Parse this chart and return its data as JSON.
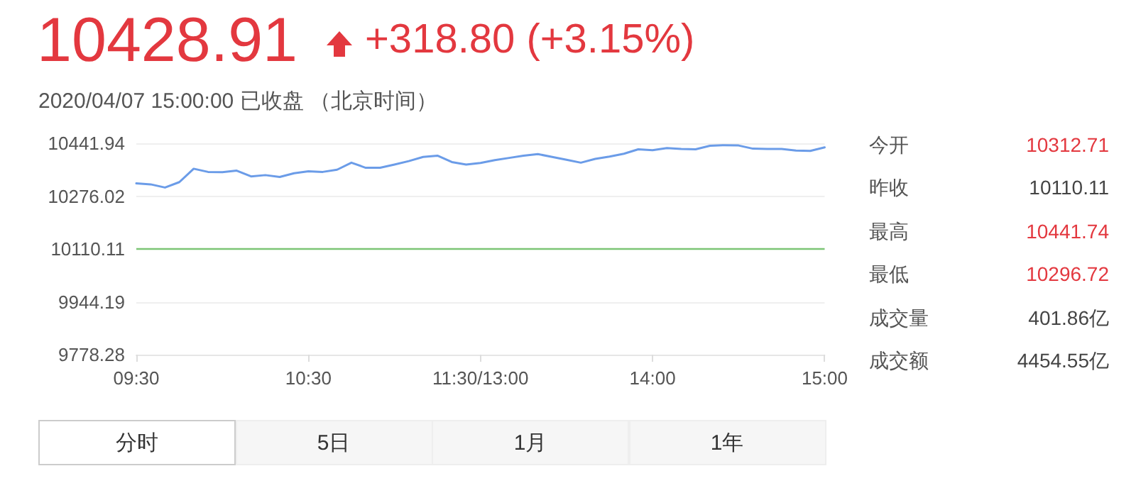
{
  "chart_data": {
    "type": "line",
    "title": "10428.91",
    "subtitle": "+318.80 (+3.15%)",
    "annotations": [
      "2020/04/07 15:00:00 已收盘 （北京时间）",
      "今开",
      "10312.71",
      "昨收",
      "10110.11",
      "最高",
      "10441.74",
      "最低",
      "10296.72",
      "成交量",
      "401.86亿",
      "成交额",
      "4454.55亿",
      "分时",
      "5日",
      "1月",
      "1年"
    ],
    "categories": [
      "09:30",
      null,
      null,
      null,
      null,
      null,
      null,
      null,
      null,
      null,
      null,
      null,
      "10:30",
      null,
      null,
      null,
      null,
      null,
      null,
      null,
      null,
      null,
      null,
      null,
      "11:30/13:00",
      null,
      null,
      null,
      null,
      null,
      null,
      null,
      null,
      null,
      null,
      null,
      "14:00",
      null,
      null,
      null,
      null,
      null,
      null,
      null,
      null,
      null,
      null,
      null,
      "15:00"
    ],
    "series": [
      {
        "color": "#6b9ce8",
        "values": [
          10316,
          10313,
          10303,
          10320,
          10362,
          10352,
          10351,
          10356,
          10338,
          10342,
          10336,
          10348,
          10354,
          10352,
          10359,
          10381,
          10365,
          10365,
          10375,
          10386,
          10399,
          10403,
          10383,
          10375,
          10380,
          10389,
          10396,
          10403,
          10408,
          10399,
          10390,
          10381,
          10393,
          10400,
          10409,
          10423,
          10420,
          10427,
          10424,
          10423,
          10434,
          10436,
          10435,
          10425,
          10424,
          10424,
          10419,
          10418,
          10429
        ]
      }
    ],
    "ylim": [
      9778.28,
      10441.94
    ],
    "yticks": [
      9778.28,
      9944.19,
      10110.11,
      10276.02,
      10441.94
    ],
    "ref_lines": [
      {
        "axis": "y",
        "value": 10110.11,
        "color": "#7cc576"
      }
    ],
    "grid": "y",
    "marker": "none",
    "line_style": "solid"
  }
}
